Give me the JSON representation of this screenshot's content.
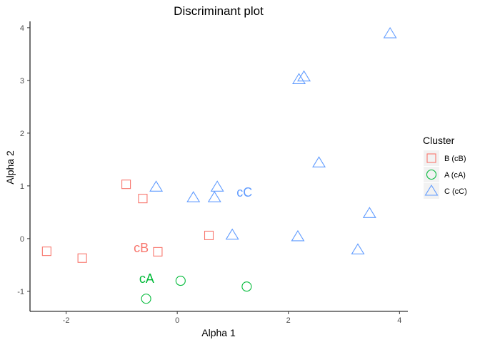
{
  "chart_data": {
    "type": "scatter",
    "title": "Discriminant plot",
    "xlabel": "Alpha 1",
    "ylabel": "Alpha 2",
    "xlim": [
      -2.65,
      4.15
    ],
    "ylim": [
      -1.38,
      4.12
    ],
    "x_ticks": [
      -2,
      0,
      2,
      4
    ],
    "y_ticks": [
      -1,
      0,
      1,
      2,
      3,
      4
    ],
    "grid": false,
    "legend": {
      "title": "Cluster",
      "position": "right",
      "entries": [
        {
          "label": "B (cB)",
          "color": "#F8766D",
          "shape": "square"
        },
        {
          "label": "A (cA)",
          "color": "#00BA38",
          "shape": "circle"
        },
        {
          "label": "C (cC)",
          "color": "#619CFF",
          "shape": "triangle"
        }
      ]
    },
    "series": [
      {
        "name": "B (cB)",
        "color": "#F8766D",
        "shape": "square",
        "points": [
          {
            "x": -2.35,
            "y": -0.24
          },
          {
            "x": -1.71,
            "y": -0.37
          },
          {
            "x": -0.92,
            "y": 1.03
          },
          {
            "x": -0.62,
            "y": 0.76
          },
          {
            "x": -0.35,
            "y": -0.25
          },
          {
            "x": 0.57,
            "y": 0.06
          }
        ]
      },
      {
        "name": "A (cA)",
        "color": "#00BA38",
        "shape": "circle",
        "points": [
          {
            "x": -0.56,
            "y": -1.14
          },
          {
            "x": 0.06,
            "y": -0.8
          },
          {
            "x": 1.25,
            "y": -0.91
          }
        ]
      },
      {
        "name": "C (cC)",
        "color": "#619CFF",
        "shape": "triangle",
        "points": [
          {
            "x": -0.38,
            "y": 0.98
          },
          {
            "x": 0.29,
            "y": 0.78
          },
          {
            "x": 0.67,
            "y": 0.78
          },
          {
            "x": 0.72,
            "y": 0.98
          },
          {
            "x": 0.99,
            "y": 0.07
          },
          {
            "x": 2.17,
            "y": 0.04
          },
          {
            "x": 2.19,
            "y": 3.02
          },
          {
            "x": 2.28,
            "y": 3.07
          },
          {
            "x": 2.55,
            "y": 1.44
          },
          {
            "x": 3.25,
            "y": -0.21
          },
          {
            "x": 3.46,
            "y": 0.48
          },
          {
            "x": 3.83,
            "y": 3.89
          }
        ]
      }
    ],
    "annotations": [
      {
        "text": "cB",
        "x": -0.65,
        "y": -0.18,
        "color": "#F8766D"
      },
      {
        "text": "cA",
        "x": -0.55,
        "y": -0.76,
        "color": "#00BA38"
      },
      {
        "text": "cC",
        "x": 1.21,
        "y": 0.88,
        "color": "#619CFF"
      }
    ]
  }
}
